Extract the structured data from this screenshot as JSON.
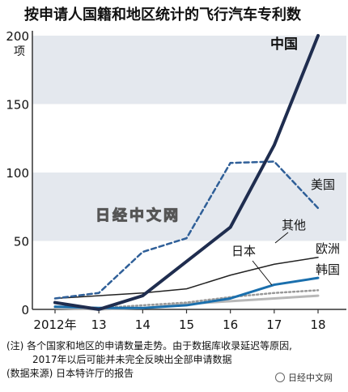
{
  "title": "按申请人国籍和地区统计的飞行汽车专利数",
  "watermark": "日经中文网",
  "notes": {
    "line1": "(注) 各个国家和地区的申请数量走势。由于数据库收录延迟等原因,",
    "line2": "2017年以后可能并未完全反映出全部申请数据",
    "line3": "(数据来源) 日本特许厅的报告"
  },
  "badge": {
    "label": "日经中文网",
    "icon": "wechat-icon"
  },
  "chart_data": {
    "type": "line",
    "x_tick_labels": [
      "2012年",
      "13",
      "14",
      "15",
      "16",
      "17",
      "18"
    ],
    "x": [
      2012,
      2013,
      2014,
      2015,
      2016,
      2017,
      2018
    ],
    "y_ticks": [
      0,
      50,
      100,
      150,
      200
    ],
    "y_unit": "项",
    "ylim": [
      0,
      200
    ],
    "series": [
      {
        "name": "中国",
        "color": "#1f2d4f",
        "style": "solid",
        "width": 4,
        "values": [
          5,
          0,
          10,
          35,
          60,
          120,
          200
        ]
      },
      {
        "name": "美国",
        "color": "#2f5f98",
        "style": "dashed",
        "width": 2.5,
        "values": [
          8,
          12,
          42,
          52,
          107,
          108,
          74
        ]
      },
      {
        "name": "其他",
        "color": "#222222",
        "style": "solid",
        "width": 1.5,
        "values": [
          8,
          10,
          12,
          15,
          25,
          33,
          38
        ]
      },
      {
        "name": "日本",
        "color": "#1a6fad",
        "style": "solid",
        "width": 3,
        "values": [
          2,
          1,
          1,
          3,
          8,
          18,
          23
        ]
      },
      {
        "name": "欧洲",
        "color": "#999999",
        "style": "dotted",
        "width": 2.5,
        "values": [
          2,
          1,
          3,
          5,
          9,
          12,
          14
        ]
      },
      {
        "name": "韩国",
        "color": "#b8b8b8",
        "style": "solid",
        "width": 3,
        "values": [
          1,
          0,
          1,
          4,
          6,
          8,
          10
        ]
      }
    ],
    "grid": "alternating horizontal bands"
  }
}
